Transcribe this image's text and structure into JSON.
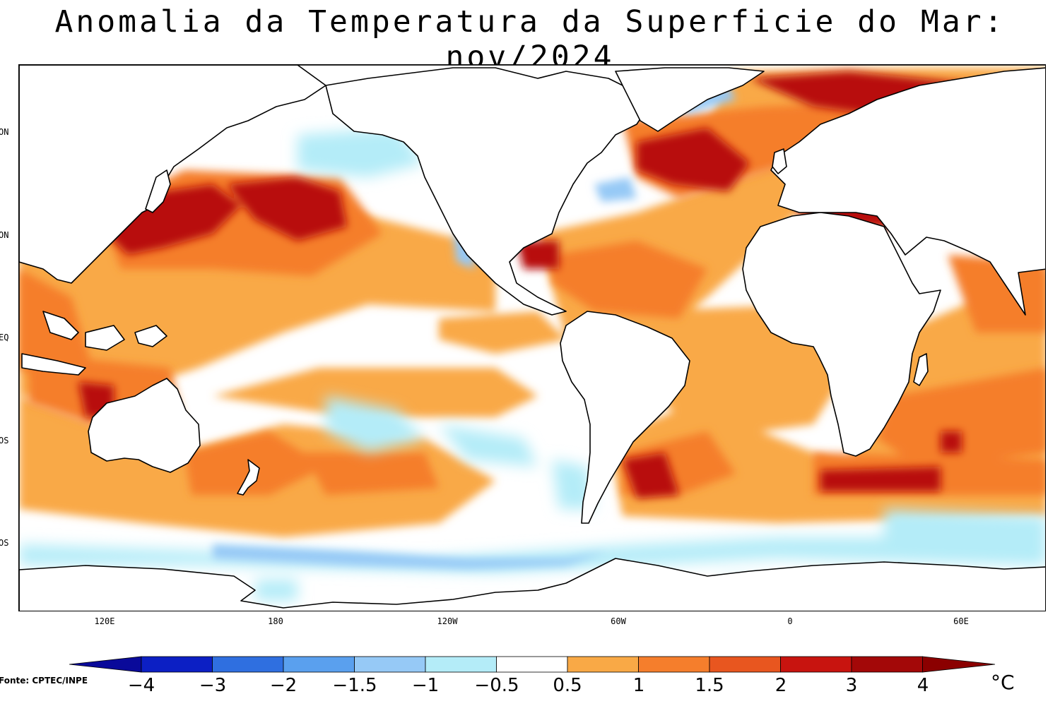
{
  "title": "Anomalia da Temperatura da Superficie do Mar: nov/2024",
  "latitude_labels": [
    "ON",
    "ON",
    "EQ",
    "OS",
    "OS"
  ],
  "longitude_labels": [
    "120E",
    "180",
    "120W",
    "60W",
    "0",
    "60E"
  ],
  "colorbar": {
    "labels": [
      "−4",
      "−3",
      "−2",
      "−1.5",
      "−1",
      "−0.5",
      "0.5",
      "1",
      "1.5",
      "2",
      "3",
      "4"
    ],
    "colors": [
      "#0a0a9a",
      "#0c1fc4",
      "#2f6fe0",
      "#5aa0ee",
      "#96c9f6",
      "#b4ecf8",
      "#ffffff",
      "#f9a946",
      "#f57e2c",
      "#e8561f",
      "#c8140f",
      "#a30808",
      "#8b0000"
    ],
    "unit": "°C"
  },
  "source": "Fonte: CPTEC/INPE",
  "colors": {
    "land": "#ffffff",
    "coastline": "#000000",
    "warm_strong": "#b81010",
    "warm_mid": "#f57e2c",
    "warm_light": "#f9a946",
    "cool_light": "#b4ecf8",
    "cool_mid": "#96c9f6"
  }
}
